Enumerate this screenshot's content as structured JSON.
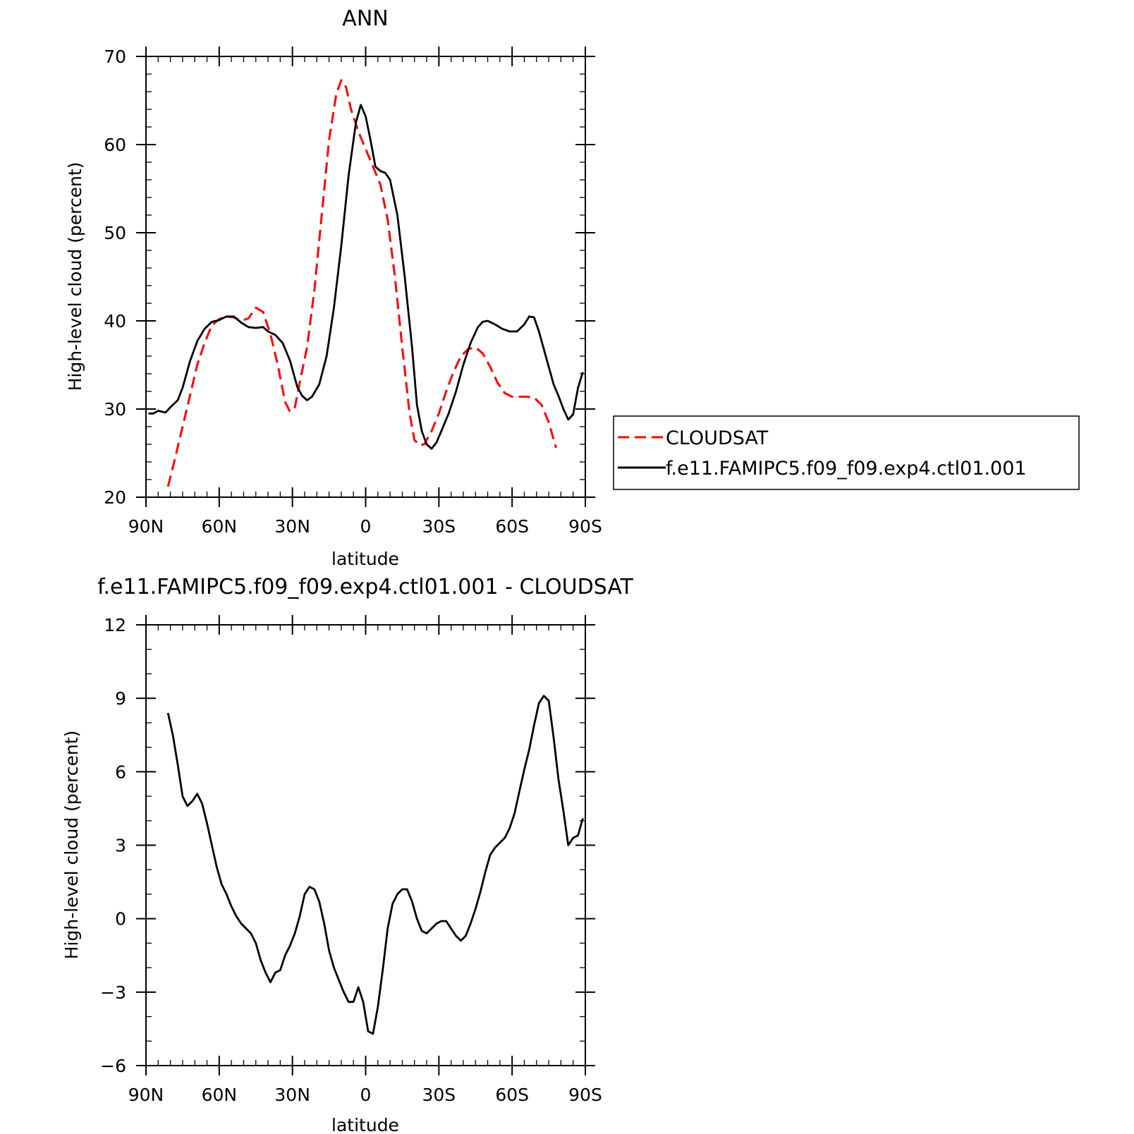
{
  "chart_data": [
    {
      "type": "line",
      "title": "ANN",
      "xlabel": "latitude",
      "ylabel": "High-level cloud (percent)",
      "xlim": [
        -90,
        90
      ],
      "ylim": [
        20,
        70
      ],
      "x_ticks": [
        {
          "value": -90,
          "label": "90N"
        },
        {
          "value": -60,
          "label": "60N"
        },
        {
          "value": -30,
          "label": "30N"
        },
        {
          "value": 0,
          "label": "0"
        },
        {
          "value": 30,
          "label": "30S"
        },
        {
          "value": 60,
          "label": "60S"
        },
        {
          "value": 90,
          "label": "90S"
        }
      ],
      "y_ticks": [
        20,
        30,
        40,
        50,
        60,
        70
      ],
      "legend_position": "right",
      "series": [
        {
          "name": "CLOUDSAT",
          "color": "#ff0000",
          "style": "dashed",
          "points": [
            [
              -81,
              21.2
            ],
            [
              -78,
              24.5
            ],
            [
              -75,
              28
            ],
            [
              -72,
              31.5
            ],
            [
              -69,
              35
            ],
            [
              -66,
              37.5
            ],
            [
              -63,
              39.5
            ],
            [
              -60,
              40.2
            ],
            [
              -57,
              40.5
            ],
            [
              -54,
              40.4
            ],
            [
              -51,
              40.0
            ],
            [
              -48,
              40.3
            ],
            [
              -45,
              41.5
            ],
            [
              -42,
              41.0
            ],
            [
              -39,
              38.5
            ],
            [
              -36,
              35.0
            ],
            [
              -33,
              30.8
            ],
            [
              -31,
              29.7
            ],
            [
              -29,
              30.2
            ],
            [
              -27,
              33.0
            ],
            [
              -24,
              37.0
            ],
            [
              -21,
              43.5
            ],
            [
              -18,
              52.0
            ],
            [
              -15,
              60.5
            ],
            [
              -12,
              65.8
            ],
            [
              -10,
              67.3
            ],
            [
              -8,
              66.5
            ],
            [
              -6,
              64.0
            ],
            [
              -3,
              61.5
            ],
            [
              0,
              59.5
            ],
            [
              3,
              57.5
            ],
            [
              6,
              55.5
            ],
            [
              9,
              51.5
            ],
            [
              12,
              45.0
            ],
            [
              15,
              37.0
            ],
            [
              18,
              29.5
            ],
            [
              20,
              26.5
            ],
            [
              22,
              25.9
            ],
            [
              24,
              26.0
            ],
            [
              27,
              27.5
            ],
            [
              30,
              29.5
            ],
            [
              33,
              32.0
            ],
            [
              36,
              34.2
            ],
            [
              39,
              36.0
            ],
            [
              42,
              36.8
            ],
            [
              45,
              37.0
            ],
            [
              48,
              36.3
            ],
            [
              51,
              34.8
            ],
            [
              54,
              33.0
            ],
            [
              57,
              31.8
            ],
            [
              60,
              31.4
            ],
            [
              63,
              31.4
            ],
            [
              66,
              31.4
            ],
            [
              69,
              31.3
            ],
            [
              72,
              30.5
            ],
            [
              75,
              28.5
            ],
            [
              78,
              25.6
            ]
          ]
        },
        {
          "name": "f.e11.FAMIPC5.f09_f09.exp4.ctl01.001",
          "color": "#000000",
          "style": "solid",
          "points": [
            [
              -89,
              29.5
            ],
            [
              -87,
              29.5
            ],
            [
              -85,
              29.8
            ],
            [
              -82,
              29.6
            ],
            [
              -80,
              30.2
            ],
            [
              -77,
              31.0
            ],
            [
              -75,
              32.4
            ],
            [
              -72,
              35.4
            ],
            [
              -69,
              37.7
            ],
            [
              -66,
              39.1
            ],
            [
              -63,
              39.9
            ],
            [
              -60,
              40.1
            ],
            [
              -57,
              40.5
            ],
            [
              -54,
              40.5
            ],
            [
              -51,
              39.8
            ],
            [
              -48,
              39.3
            ],
            [
              -45,
              39.2
            ],
            [
              -42,
              39.3
            ],
            [
              -40,
              38.8
            ],
            [
              -37,
              38.4
            ],
            [
              -34,
              37.5
            ],
            [
              -31,
              35.5
            ],
            [
              -28,
              32.5
            ],
            [
              -26,
              31.5
            ],
            [
              -24,
              31.0
            ],
            [
              -22,
              31.4
            ],
            [
              -19,
              32.8
            ],
            [
              -16,
              36.0
            ],
            [
              -13,
              41.5
            ],
            [
              -10,
              48.5
            ],
            [
              -7,
              56.5
            ],
            [
              -4,
              62.5
            ],
            [
              -2,
              64.5
            ],
            [
              0,
              63.2
            ],
            [
              2,
              60.5
            ],
            [
              4,
              57.5
            ],
            [
              6,
              57.0
            ],
            [
              8,
              56.8
            ],
            [
              10,
              56.0
            ],
            [
              13,
              52.0
            ],
            [
              16,
              45.0
            ],
            [
              19,
              37.0
            ],
            [
              21,
              30.5
            ],
            [
              23,
              27.5
            ],
            [
              25,
              26.0
            ],
            [
              27,
              25.5
            ],
            [
              29,
              26.2
            ],
            [
              31,
              27.5
            ],
            [
              34,
              29.5
            ],
            [
              37,
              32.0
            ],
            [
              40,
              35.0
            ],
            [
              43,
              37.5
            ],
            [
              46,
              39.3
            ],
            [
              48,
              39.9
            ],
            [
              50,
              40.0
            ],
            [
              53,
              39.6
            ],
            [
              56,
              39.1
            ],
            [
              59,
              38.8
            ],
            [
              62,
              38.8
            ],
            [
              65,
              39.6
            ],
            [
              67,
              40.5
            ],
            [
              69,
              40.4
            ],
            [
              71,
              38.8
            ],
            [
              74,
              35.8
            ],
            [
              77,
              32.8
            ],
            [
              79,
              31.5
            ],
            [
              81,
              30.0
            ],
            [
              83,
              28.8
            ],
            [
              85,
              29.4
            ],
            [
              87,
              32.4
            ],
            [
              89,
              34.2
            ]
          ]
        }
      ]
    },
    {
      "type": "line",
      "title": "f.e11.FAMIPC5.f09_f09.exp4.ctl01.001 - CLOUDSAT",
      "xlabel": "latitude",
      "ylabel": "High-level cloud (percent)",
      "xlim": [
        -90,
        90
      ],
      "ylim": [
        -6,
        12
      ],
      "x_ticks": [
        {
          "value": -90,
          "label": "90N"
        },
        {
          "value": -60,
          "label": "60N"
        },
        {
          "value": -30,
          "label": "30N"
        },
        {
          "value": 0,
          "label": "0"
        },
        {
          "value": 30,
          "label": "30S"
        },
        {
          "value": 60,
          "label": "60S"
        },
        {
          "value": 90,
          "label": "90S"
        }
      ],
      "y_ticks": [
        -6,
        -3,
        0,
        3,
        6,
        9,
        12
      ],
      "series": [
        {
          "color": "#000000",
          "style": "solid",
          "points": [
            [
              -81,
              8.4
            ],
            [
              -79,
              7.5
            ],
            [
              -77,
              6.3
            ],
            [
              -75,
              5.0
            ],
            [
              -73,
              4.6
            ],
            [
              -71,
              4.8
            ],
            [
              -69,
              5.1
            ],
            [
              -67,
              4.7
            ],
            [
              -65,
              3.9
            ],
            [
              -63,
              3.0
            ],
            [
              -61,
              2.1
            ],
            [
              -59,
              1.4
            ],
            [
              -57,
              1.0
            ],
            [
              -55,
              0.5
            ],
            [
              -53,
              0.1
            ],
            [
              -51,
              -0.2
            ],
            [
              -49,
              -0.4
            ],
            [
              -47,
              -0.6
            ],
            [
              -45,
              -1.0
            ],
            [
              -43,
              -1.7
            ],
            [
              -41,
              -2.2
            ],
            [
              -39,
              -2.6
            ],
            [
              -37,
              -2.2
            ],
            [
              -35,
              -2.1
            ],
            [
              -33,
              -1.5
            ],
            [
              -31,
              -1.1
            ],
            [
              -29,
              -0.6
            ],
            [
              -27,
              0.1
            ],
            [
              -25,
              1.0
            ],
            [
              -23,
              1.3
            ],
            [
              -21,
              1.2
            ],
            [
              -19,
              0.7
            ],
            [
              -17,
              -0.2
            ],
            [
              -15,
              -1.3
            ],
            [
              -13,
              -2.0
            ],
            [
              -11,
              -2.5
            ],
            [
              -9,
              -3.0
            ],
            [
              -7,
              -3.4
            ],
            [
              -5,
              -3.4
            ],
            [
              -3,
              -2.8
            ],
            [
              -1,
              -3.4
            ],
            [
              1,
              -4.6
            ],
            [
              3,
              -4.7
            ],
            [
              5,
              -3.6
            ],
            [
              7,
              -2.1
            ],
            [
              9,
              -0.4
            ],
            [
              11,
              0.6
            ],
            [
              13,
              1.0
            ],
            [
              15,
              1.2
            ],
            [
              17,
              1.2
            ],
            [
              19,
              0.7
            ],
            [
              21,
              0.0
            ],
            [
              23,
              -0.5
            ],
            [
              25,
              -0.6
            ],
            [
              27,
              -0.4
            ],
            [
              29,
              -0.2
            ],
            [
              31,
              -0.1
            ],
            [
              33,
              -0.1
            ],
            [
              35,
              -0.4
            ],
            [
              37,
              -0.7
            ],
            [
              39,
              -0.9
            ],
            [
              41,
              -0.7
            ],
            [
              43,
              -0.2
            ],
            [
              45,
              0.4
            ],
            [
              47,
              1.1
            ],
            [
              49,
              1.9
            ],
            [
              51,
              2.6
            ],
            [
              53,
              2.9
            ],
            [
              55,
              3.1
            ],
            [
              57,
              3.3
            ],
            [
              59,
              3.7
            ],
            [
              61,
              4.3
            ],
            [
              63,
              5.2
            ],
            [
              65,
              6.1
            ],
            [
              67,
              6.9
            ],
            [
              69,
              7.9
            ],
            [
              71,
              8.8
            ],
            [
              73,
              9.1
            ],
            [
              75,
              8.9
            ],
            [
              77,
              7.4
            ],
            [
              79,
              5.7
            ],
            [
              81,
              4.4
            ],
            [
              83,
              3.0
            ],
            [
              85,
              3.3
            ],
            [
              87,
              3.4
            ],
            [
              89,
              4.1
            ]
          ]
        }
      ]
    }
  ]
}
